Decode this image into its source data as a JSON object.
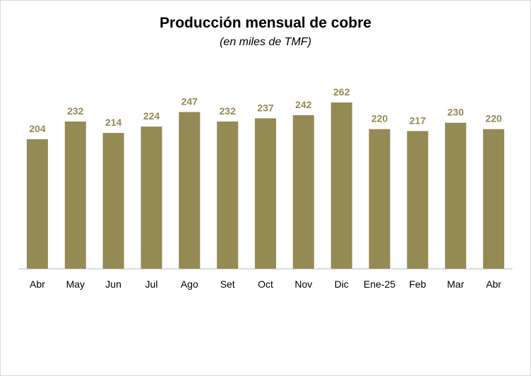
{
  "chart_data": {
    "type": "bar",
    "title": "Producción  mensual de cobre",
    "subtitle": "(en miles de TMF)",
    "categories": [
      "Abr",
      "May",
      "Jun",
      "Jul",
      "Ago",
      "Set",
      "Oct",
      "Nov",
      "Dic",
      "Ene-25",
      "Feb",
      "Mar",
      "Abr"
    ],
    "values": [
      204,
      232,
      214,
      224,
      247,
      232,
      237,
      242,
      262,
      220,
      217,
      230,
      220
    ],
    "xlabel": "",
    "ylabel": "",
    "ylim": [
      0,
      262
    ],
    "grid": false,
    "legend": "none",
    "data_labels": true,
    "colors": {
      "bar": "#948a54",
      "label": "#948a54",
      "axis": "#bfbfbf"
    }
  }
}
